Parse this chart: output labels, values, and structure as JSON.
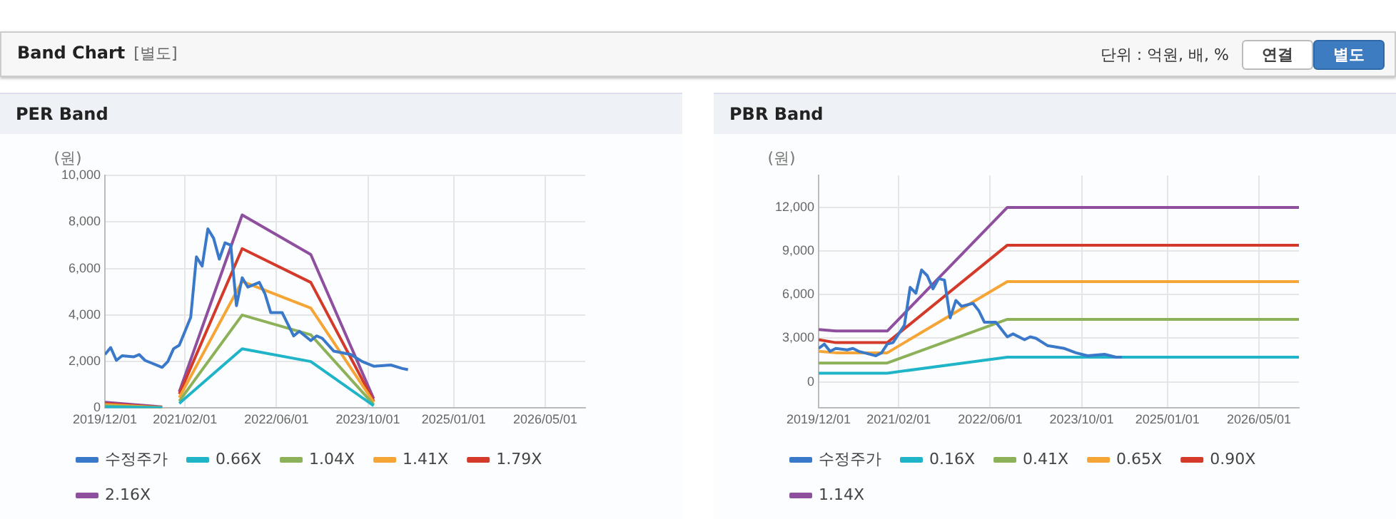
{
  "chart_data": [
    {
      "type": "other",
      "title": "Band Chart",
      "annotations": [
        "[별도]",
        "단위 : 억원, 배, %",
        "연결",
        "별도"
      ]
    },
    {
      "type": "line",
      "title": "PER Band",
      "ylabel": "(원)",
      "xlim": [
        "2019-12",
        "2026-12"
      ],
      "ylim": [
        0,
        10000
      ],
      "yticks": [
        0,
        {
          "value": 2000,
          "label": "2,000"
        },
        {
          "value": 4000,
          "label": "4,000"
        },
        {
          "value": 6000,
          "label": "6,000"
        },
        {
          "value": 8000,
          "label": "8,000"
        },
        {
          "value": 10000,
          "label": "10,000"
        }
      ],
      "xticks": [
        {
          "value": "2019-12",
          "label": "2019/12/01"
        },
        {
          "value": "2021-02",
          "label": "2021/02/01"
        },
        {
          "value": "2022-06",
          "label": "2022/06/01"
        },
        {
          "value": "2023-10",
          "label": "2023/10/01"
        },
        {
          "value": "2025-01",
          "label": "2025/01/01"
        },
        {
          "value": "2026-05",
          "label": "2026/05/01"
        }
      ],
      "grid": true,
      "legend": "bottom",
      "marker": "none",
      "line_style": "solid",
      "series": [
        {
          "name": "수정주가",
          "color": "#3a78c9",
          "x": [
            "2019-12",
            "2020-01",
            "2020-02",
            "2020-03",
            "2020-05",
            "2020-06",
            "2020-07",
            "2020-08",
            "2020-10",
            "2020-11",
            "2020-12",
            "2021-01",
            "2021-03",
            "2021-04",
            "2021-05",
            "2021-06",
            "2021-07",
            "2021-08",
            "2021-09",
            "2021-10",
            "2021-11",
            "2021-12",
            "2022-01",
            "2022-03",
            "2022-04",
            "2022-05",
            "2022-07",
            "2022-09",
            "2022-10",
            "2022-12",
            "2023-01",
            "2023-02",
            "2023-04",
            "2023-07",
            "2023-09",
            "2023-11",
            "2024-02",
            "2024-04",
            "2024-05"
          ],
          "values": [
            2300,
            2600,
            2050,
            2250,
            2200,
            2300,
            2050,
            1950,
            1750,
            2000,
            2550,
            2700,
            3900,
            6500,
            6100,
            7700,
            7300,
            6400,
            7100,
            7000,
            4400,
            5600,
            5200,
            5400,
            4900,
            4100,
            4100,
            3100,
            3300,
            2900,
            3100,
            3000,
            2450,
            2300,
            2000,
            1800,
            1850,
            1700,
            1650
          ]
        },
        {
          "name": "0.66X",
          "color": "#1fb4c8",
          "x": [
            "2019-12",
            "2020-10",
            "2020-12",
            "2021-01",
            "2021-12",
            "2022-12",
            "2023-11"
          ],
          "values": [
            50,
            10,
            null,
            200,
            2550,
            2000,
            100
          ]
        },
        {
          "name": "1.04X",
          "color": "#8cb158",
          "x": [
            "2019-12",
            "2020-10",
            "2020-12",
            "2021-01",
            "2021-12",
            "2022-12",
            "2023-11"
          ],
          "values": [
            100,
            20,
            null,
            300,
            4000,
            3150,
            150
          ]
        },
        {
          "name": "1.41X",
          "color": "#f5a535",
          "x": [
            "2019-12",
            "2020-10",
            "2020-12",
            "2021-01",
            "2021-12",
            "2022-12",
            "2023-11"
          ],
          "values": [
            150,
            20,
            null,
            450,
            5450,
            4300,
            250
          ]
        },
        {
          "name": "1.79X",
          "color": "#d33a2a",
          "x": [
            "2019-12",
            "2020-10",
            "2020-12",
            "2021-01",
            "2021-12",
            "2022-12",
            "2023-11"
          ],
          "values": [
            200,
            30,
            null,
            600,
            6850,
            5400,
            300
          ]
        },
        {
          "name": "2.16X",
          "color": "#8e4f9f",
          "x": [
            "2019-12",
            "2020-10",
            "2020-12",
            "2021-01",
            "2021-12",
            "2022-12",
            "2023-11"
          ],
          "values": [
            250,
            50,
            null,
            700,
            8300,
            6600,
            400
          ]
        }
      ]
    },
    {
      "type": "line",
      "title": "PBR Band",
      "ylabel": "(원)",
      "xlim": [
        "2019-12",
        "2026-12"
      ],
      "ylim": [
        -1800,
        14200
      ],
      "yticks": [
        0,
        {
          "value": 3000,
          "label": "3,000"
        },
        {
          "value": 6000,
          "label": "6,000"
        },
        {
          "value": 9000,
          "label": "9,000"
        },
        {
          "value": 12000,
          "label": "12,000"
        }
      ],
      "xticks": [
        {
          "value": "2019-12",
          "label": "2019/12/01"
        },
        {
          "value": "2021-02",
          "label": "2021/02/01"
        },
        {
          "value": "2022-06",
          "label": "2022/06/01"
        },
        {
          "value": "2023-10",
          "label": "2023/10/01"
        },
        {
          "value": "2025-01",
          "label": "2025/01/01"
        },
        {
          "value": "2026-05",
          "label": "2026/05/01"
        }
      ],
      "grid": true,
      "legend": "bottom",
      "marker": "none",
      "line_style": "solid",
      "series": [
        {
          "name": "수정주가",
          "color": "#3a78c9",
          "x": [
            "2019-12",
            "2020-01",
            "2020-02",
            "2020-03",
            "2020-05",
            "2020-06",
            "2020-07",
            "2020-08",
            "2020-10",
            "2020-11",
            "2020-12",
            "2021-01",
            "2021-03",
            "2021-04",
            "2021-05",
            "2021-06",
            "2021-07",
            "2021-08",
            "2021-09",
            "2021-10",
            "2021-11",
            "2021-12",
            "2022-01",
            "2022-03",
            "2022-04",
            "2022-05",
            "2022-07",
            "2022-09",
            "2022-10",
            "2022-12",
            "2023-01",
            "2023-02",
            "2023-04",
            "2023-07",
            "2023-09",
            "2023-11",
            "2024-02",
            "2024-04",
            "2024-05"
          ],
          "values": [
            2300,
            2600,
            2100,
            2300,
            2200,
            2300,
            2100,
            2000,
            1800,
            2000,
            2600,
            2700,
            3900,
            6500,
            6100,
            7700,
            7300,
            6400,
            7100,
            7000,
            4400,
            5600,
            5200,
            5400,
            4900,
            4100,
            4100,
            3100,
            3300,
            2900,
            3100,
            3000,
            2500,
            2300,
            2000,
            1800,
            1900,
            1700,
            1700
          ]
        },
        {
          "name": "0.16X",
          "color": "#1fb4c8",
          "x": [
            "2019-12",
            "2020-12",
            "2022-09",
            "2026-12"
          ],
          "values": [
            600,
            600,
            1700,
            1700
          ]
        },
        {
          "name": "0.41X",
          "color": "#8cb158",
          "x": [
            "2019-12",
            "2020-12",
            "2022-09",
            "2026-12"
          ],
          "values": [
            1300,
            1300,
            4300,
            4300
          ]
        },
        {
          "name": "0.65X",
          "color": "#f5a535",
          "x": [
            "2019-12",
            "2020-03",
            "2020-12",
            "2022-09",
            "2026-12"
          ],
          "values": [
            2100,
            2000,
            2000,
            6900,
            6900
          ]
        },
        {
          "name": "0.90X",
          "color": "#d33a2a",
          "x": [
            "2019-12",
            "2020-03",
            "2020-12",
            "2022-09",
            "2026-12"
          ],
          "values": [
            2900,
            2700,
            2700,
            9400,
            9400
          ]
        },
        {
          "name": "1.14X",
          "color": "#8e4f9f",
          "x": [
            "2019-12",
            "2020-03",
            "2020-12",
            "2022-09",
            "2026-12"
          ],
          "values": [
            3600,
            3500,
            3500,
            12000,
            12000
          ]
        }
      ]
    }
  ]
}
